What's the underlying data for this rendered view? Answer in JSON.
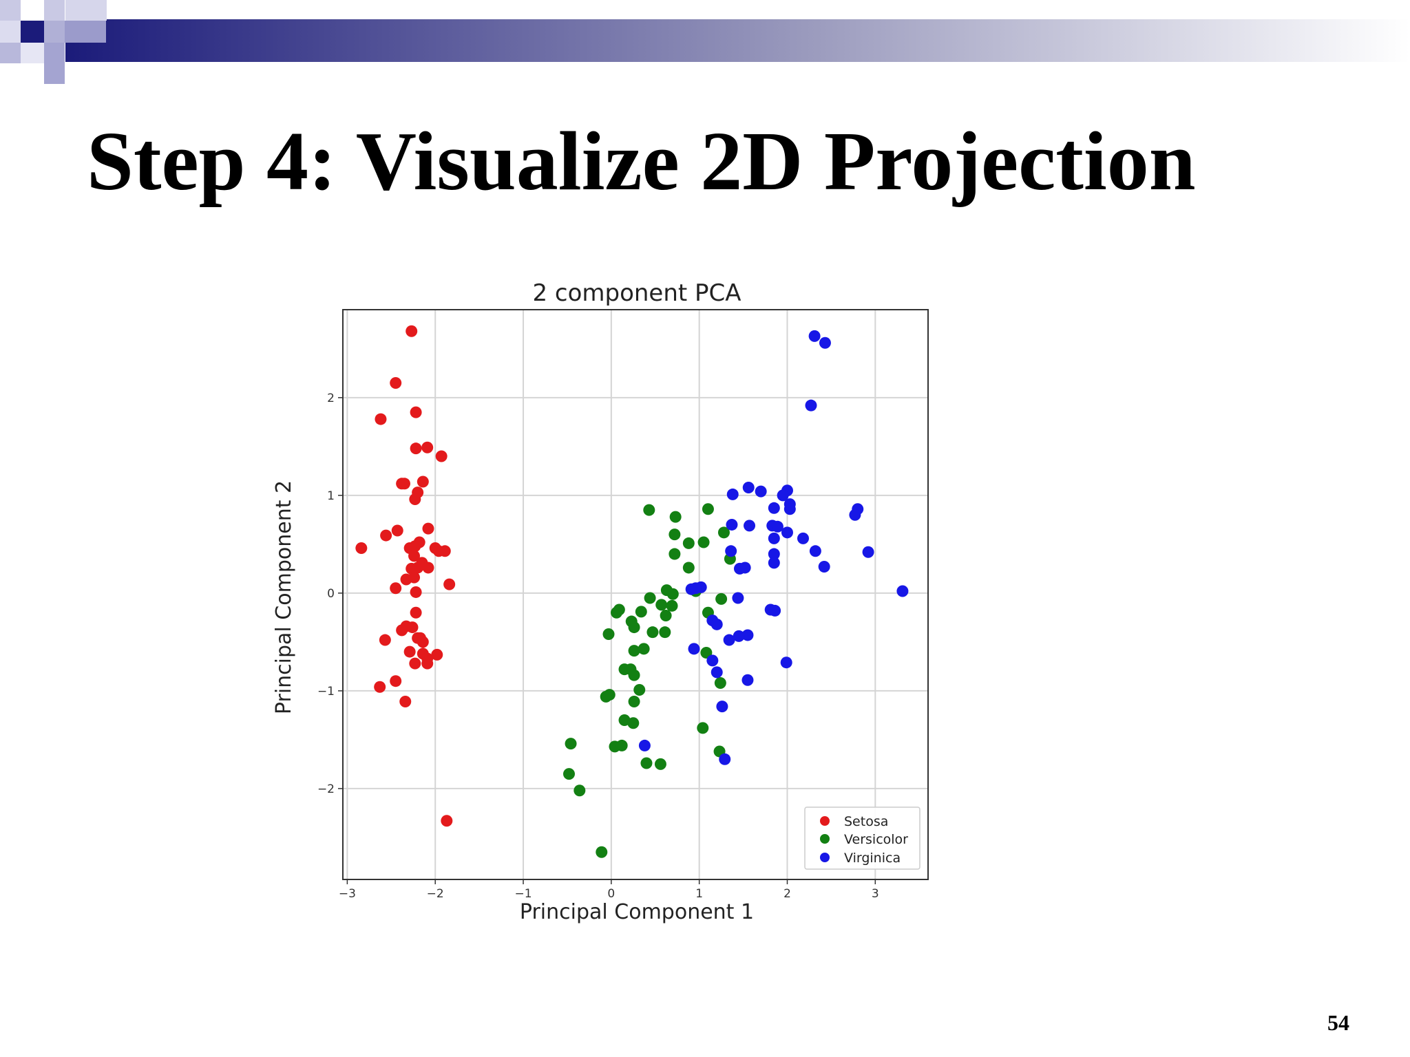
{
  "slide": {
    "title": "Step 4: Visualize 2D Projection",
    "page_number": "54",
    "banner_color": "#1b1b7a"
  },
  "chart_data": {
    "type": "scatter",
    "title": "2 component PCA",
    "xlabel": "Principal Component 1",
    "ylabel": "Principal Component 2",
    "xlim": [
      -3.05,
      3.6
    ],
    "ylim": [
      -2.93,
      2.9
    ],
    "xticks": [
      -3,
      -2,
      -1,
      0,
      1,
      2,
      3
    ],
    "yticks": [
      -2,
      -1,
      0,
      1,
      2
    ],
    "grid": true,
    "legend_position": "lower right",
    "series": [
      {
        "name": "Setosa",
        "color": "#e31a1c",
        "points": [
          [
            -2.27,
            2.68
          ],
          [
            -2.45,
            2.15
          ],
          [
            -2.62,
            1.78
          ],
          [
            -2.22,
            1.85
          ],
          [
            -2.22,
            1.48
          ],
          [
            -2.09,
            1.49
          ],
          [
            -1.93,
            1.4
          ],
          [
            -2.38,
            1.12
          ],
          [
            -2.35,
            1.12
          ],
          [
            -2.14,
            1.14
          ],
          [
            -2.2,
            1.03
          ],
          [
            -2.23,
            0.96
          ],
          [
            -2.43,
            0.64
          ],
          [
            -2.56,
            0.59
          ],
          [
            -2.08,
            0.66
          ],
          [
            -2.84,
            0.46
          ],
          [
            -2.29,
            0.46
          ],
          [
            -2.23,
            0.48
          ],
          [
            -2.18,
            0.52
          ],
          [
            -2.24,
            0.38
          ],
          [
            -2.0,
            0.46
          ],
          [
            -1.96,
            0.43
          ],
          [
            -1.89,
            0.43
          ],
          [
            -2.15,
            0.31
          ],
          [
            -2.2,
            0.26
          ],
          [
            -2.27,
            0.25
          ],
          [
            -2.08,
            0.26
          ],
          [
            -2.33,
            0.14
          ],
          [
            -2.24,
            0.16
          ],
          [
            -1.84,
            0.09
          ],
          [
            -2.45,
            0.05
          ],
          [
            -2.22,
            0.01
          ],
          [
            -2.22,
            -0.2
          ],
          [
            -2.33,
            -0.34
          ],
          [
            -2.26,
            -0.35
          ],
          [
            -2.38,
            -0.38
          ],
          [
            -2.57,
            -0.48
          ],
          [
            -2.2,
            -0.46
          ],
          [
            -2.17,
            -0.46
          ],
          [
            -2.14,
            -0.5
          ],
          [
            -2.29,
            -0.6
          ],
          [
            -2.14,
            -0.62
          ],
          [
            -1.98,
            -0.63
          ],
          [
            -2.23,
            -0.72
          ],
          [
            -2.09,
            -0.67
          ],
          [
            -2.09,
            -0.72
          ],
          [
            -2.45,
            -0.9
          ],
          [
            -2.63,
            -0.96
          ],
          [
            -2.34,
            -1.11
          ],
          [
            -1.87,
            -2.33
          ]
        ]
      },
      {
        "name": "Versicolor",
        "color": "#138013",
        "points": [
          [
            0.43,
            0.85
          ],
          [
            0.73,
            0.78
          ],
          [
            1.1,
            0.86
          ],
          [
            1.28,
            0.62
          ],
          [
            0.72,
            0.6
          ],
          [
            0.88,
            0.51
          ],
          [
            1.05,
            0.52
          ],
          [
            0.72,
            0.4
          ],
          [
            1.35,
            0.35
          ],
          [
            0.88,
            0.26
          ],
          [
            0.63,
            0.03
          ],
          [
            0.96,
            0.02
          ],
          [
            0.7,
            -0.01
          ],
          [
            0.44,
            -0.05
          ],
          [
            0.57,
            -0.12
          ],
          [
            0.69,
            -0.13
          ],
          [
            1.25,
            -0.06
          ],
          [
            0.09,
            -0.17
          ],
          [
            0.06,
            -0.2
          ],
          [
            0.34,
            -0.19
          ],
          [
            0.23,
            -0.29
          ],
          [
            0.26,
            -0.35
          ],
          [
            0.62,
            -0.23
          ],
          [
            0.47,
            -0.4
          ],
          [
            0.61,
            -0.4
          ],
          [
            -0.03,
            -0.42
          ],
          [
            1.1,
            -0.2
          ],
          [
            0.26,
            -0.59
          ],
          [
            0.37,
            -0.57
          ],
          [
            0.15,
            -0.78
          ],
          [
            0.22,
            -0.78
          ],
          [
            0.26,
            -0.84
          ],
          [
            1.08,
            -0.61
          ],
          [
            1.24,
            -0.92
          ],
          [
            0.32,
            -0.99
          ],
          [
            -0.02,
            -1.04
          ],
          [
            -0.06,
            -1.06
          ],
          [
            0.26,
            -1.11
          ],
          [
            0.15,
            -1.3
          ],
          [
            0.25,
            -1.33
          ],
          [
            1.04,
            -1.38
          ],
          [
            0.04,
            -1.57
          ],
          [
            0.12,
            -1.56
          ],
          [
            -0.46,
            -1.54
          ],
          [
            0.4,
            -1.74
          ],
          [
            0.56,
            -1.75
          ],
          [
            1.23,
            -1.62
          ],
          [
            -0.48,
            -1.85
          ],
          [
            -0.36,
            -2.02
          ],
          [
            -0.11,
            -2.65
          ]
        ]
      },
      {
        "name": "Virginica",
        "color": "#1717e6",
        "points": [
          [
            2.31,
            2.63
          ],
          [
            2.43,
            2.56
          ],
          [
            2.27,
            1.92
          ],
          [
            1.56,
            1.08
          ],
          [
            1.7,
            1.04
          ],
          [
            1.38,
            1.01
          ],
          [
            2.0,
            1.05
          ],
          [
            1.95,
            1.0
          ],
          [
            2.03,
            0.91
          ],
          [
            2.03,
            0.86
          ],
          [
            1.85,
            0.87
          ],
          [
            2.8,
            0.86
          ],
          [
            2.77,
            0.8
          ],
          [
            1.37,
            0.7
          ],
          [
            1.57,
            0.69
          ],
          [
            1.83,
            0.69
          ],
          [
            1.89,
            0.68
          ],
          [
            2.0,
            0.62
          ],
          [
            2.18,
            0.56
          ],
          [
            1.85,
            0.56
          ],
          [
            2.32,
            0.43
          ],
          [
            2.92,
            0.42
          ],
          [
            1.36,
            0.43
          ],
          [
            1.85,
            0.4
          ],
          [
            1.85,
            0.31
          ],
          [
            1.46,
            0.25
          ],
          [
            1.52,
            0.26
          ],
          [
            2.42,
            0.27
          ],
          [
            0.91,
            0.04
          ],
          [
            1.02,
            0.06
          ],
          [
            0.96,
            0.05
          ],
          [
            3.31,
            0.02
          ],
          [
            1.44,
            -0.05
          ],
          [
            1.81,
            -0.17
          ],
          [
            1.86,
            -0.18
          ],
          [
            1.15,
            -0.28
          ],
          [
            1.2,
            -0.32
          ],
          [
            1.55,
            -0.43
          ],
          [
            1.45,
            -0.44
          ],
          [
            1.34,
            -0.48
          ],
          [
            0.94,
            -0.57
          ],
          [
            1.15,
            -0.69
          ],
          [
            1.99,
            -0.71
          ],
          [
            1.2,
            -0.81
          ],
          [
            1.55,
            -0.89
          ],
          [
            1.26,
            -1.16
          ],
          [
            0.38,
            -1.56
          ],
          [
            1.29,
            -1.7
          ]
        ]
      }
    ]
  }
}
